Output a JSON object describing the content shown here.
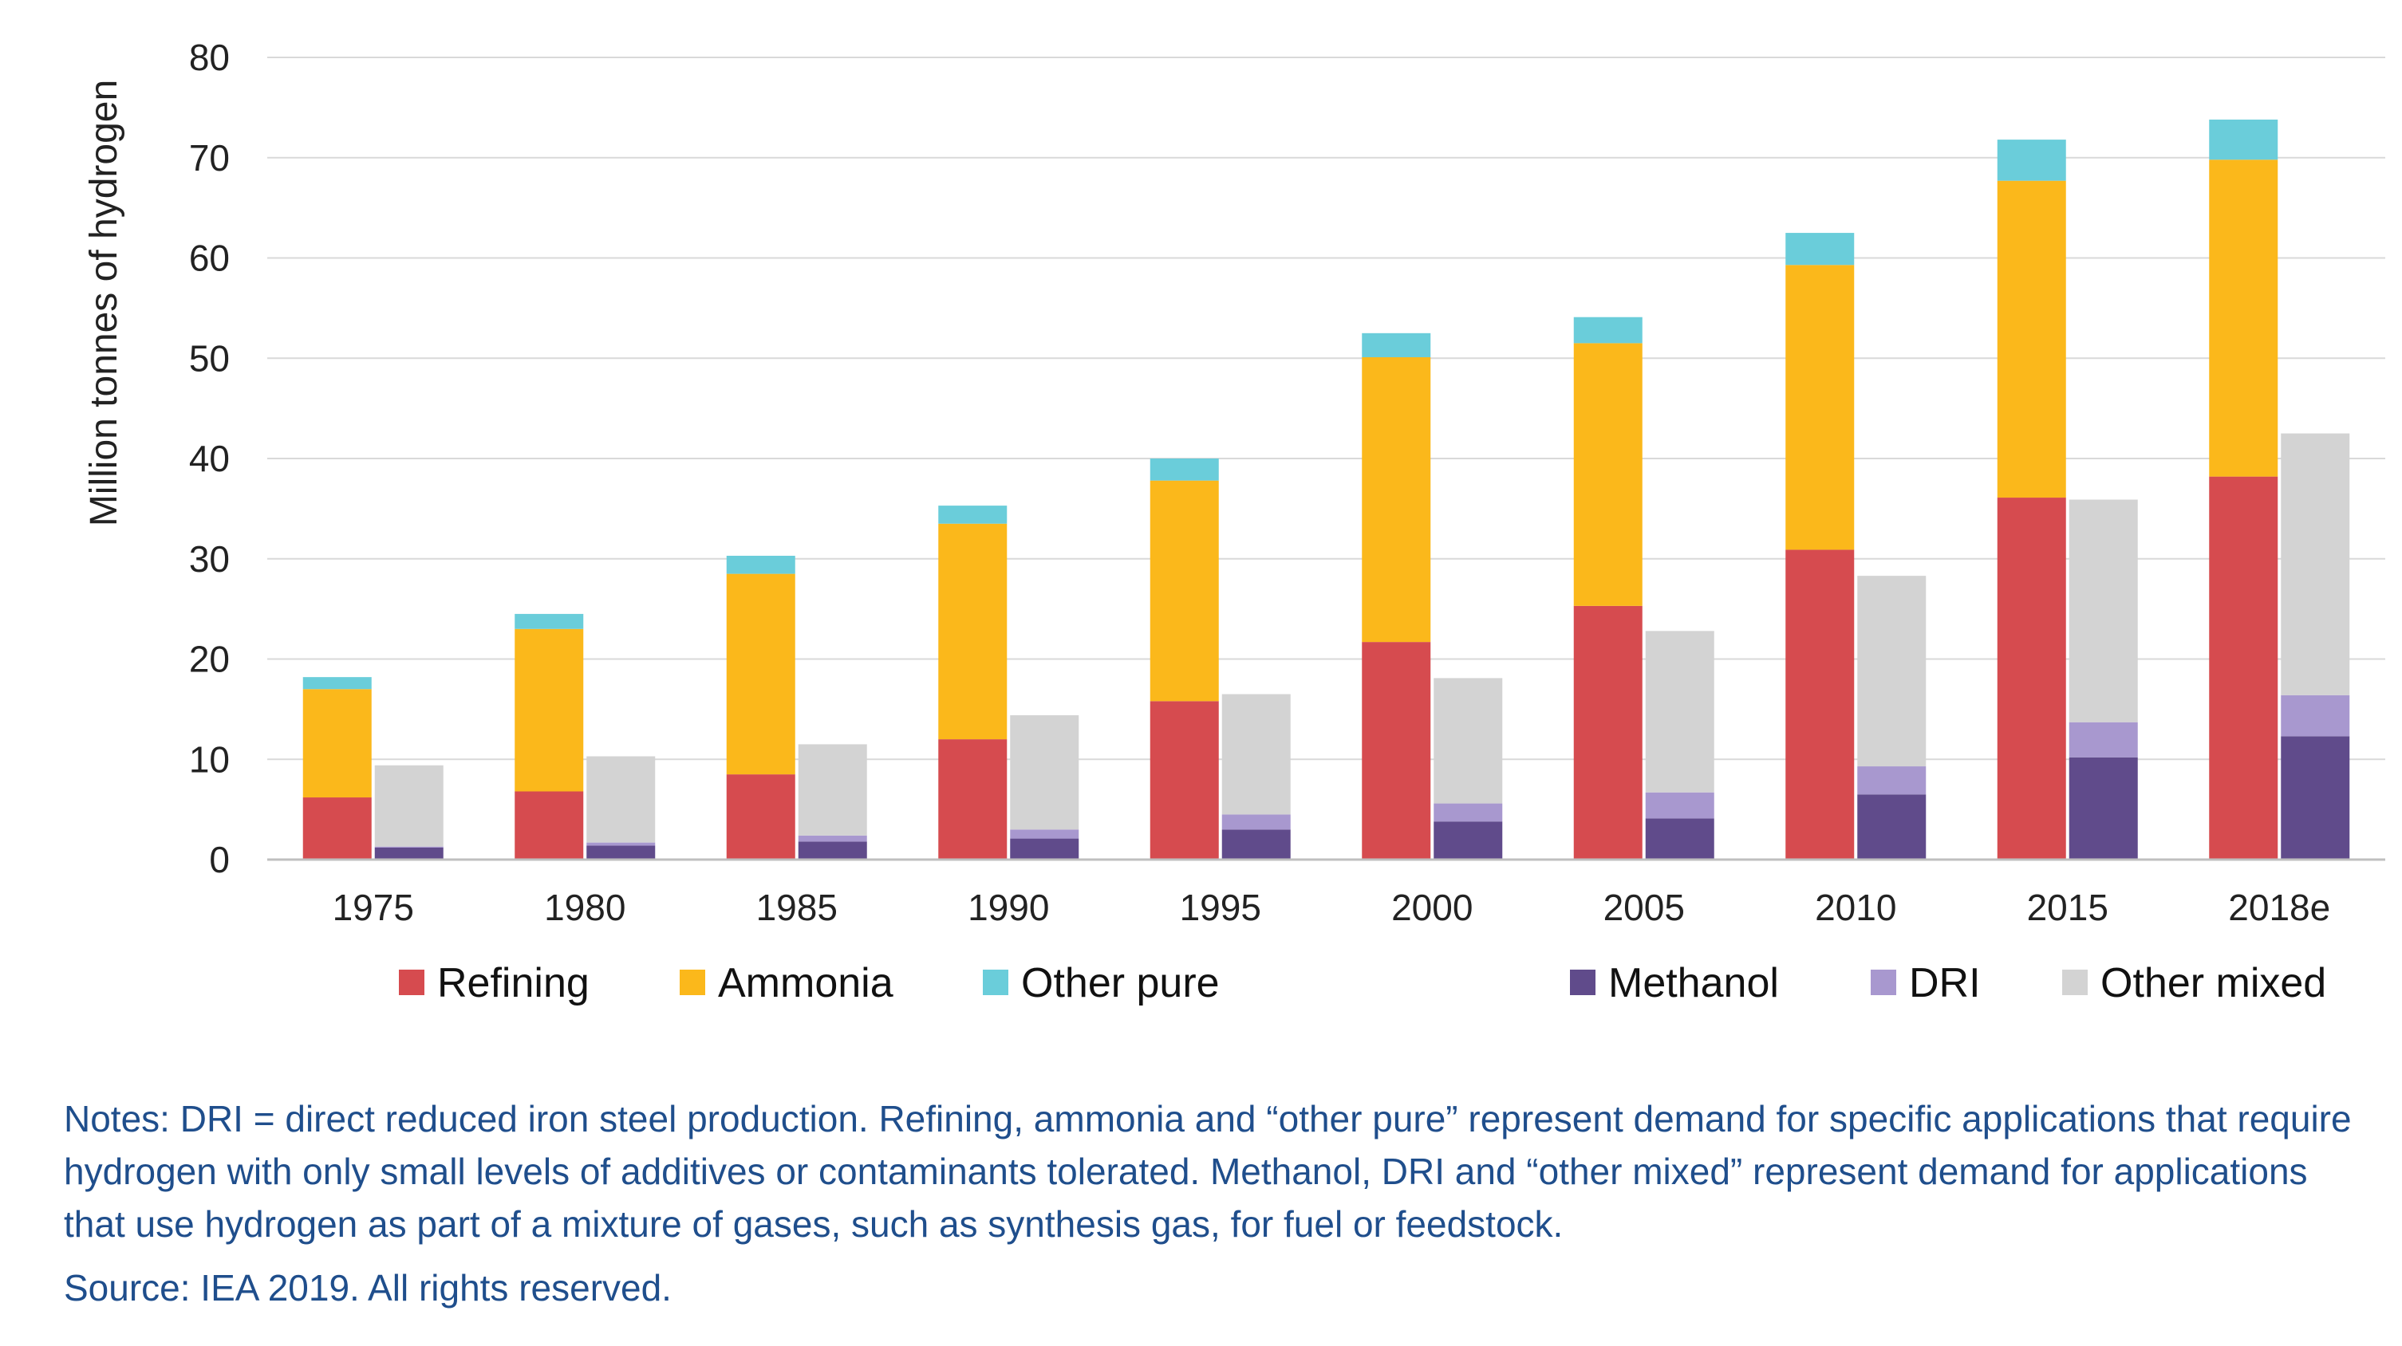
{
  "chart_data": {
    "type": "bar",
    "title": "",
    "xlabel": "",
    "ylabel": "Million tonnes of hydrogen",
    "ylim": [
      0,
      80
    ],
    "yticks": [
      0,
      10,
      20,
      30,
      40,
      50,
      60,
      70,
      80
    ],
    "categories": [
      "1975",
      "1980",
      "1985",
      "1990",
      "1995",
      "2000",
      "2005",
      "2010",
      "2015",
      "2018e"
    ],
    "stacks": [
      {
        "name": "pure",
        "series": [
          {
            "name": "Refining",
            "color": "#d64b4f",
            "values": [
              6.2,
              6.8,
              8.5,
              12.0,
              15.8,
              21.7,
              25.3,
              30.9,
              36.1,
              38.2
            ]
          },
          {
            "name": "Ammonia",
            "color": "#fbb81b",
            "values": [
              10.8,
              16.2,
              20.0,
              21.5,
              22.0,
              28.4,
              26.2,
              28.4,
              31.6,
              31.6
            ]
          },
          {
            "name": "Other pure",
            "color": "#6acdda",
            "values": [
              1.2,
              1.5,
              1.8,
              1.8,
              2.2,
              2.4,
              2.6,
              3.2,
              4.1,
              4.0
            ]
          }
        ]
      },
      {
        "name": "mixed",
        "series": [
          {
            "name": "Methanol",
            "color": "#604b8b",
            "values": [
              1.2,
              1.4,
              1.8,
              2.1,
              3.0,
              3.8,
              4.1,
              6.5,
              10.2,
              12.3
            ]
          },
          {
            "name": "DRI",
            "color": "#a898cf",
            "values": [
              0.1,
              0.3,
              0.6,
              0.9,
              1.5,
              1.8,
              2.6,
              2.8,
              3.5,
              4.1
            ]
          },
          {
            "name": "Other mixed",
            "color": "#d3d3d3",
            "values": [
              8.1,
              8.6,
              9.1,
              11.4,
              12.0,
              12.5,
              16.1,
              19.0,
              22.2,
              26.1
            ]
          }
        ]
      }
    ],
    "legend": [
      "Refining",
      "Ammonia",
      "Other pure",
      "Methanol",
      "DRI",
      "Other mixed"
    ],
    "legend_position": "bottom",
    "grid": true
  },
  "notes": "Notes: DRI = direct reduced iron steel production. Refining, ammonia and “other pure” represent demand for specific applications that require hydrogen with only small levels of additives or contaminants tolerated. Methanol, DRI and “other mixed” represent demand for applications that use hydrogen as part of a mixture of gases, such as synthesis gas, for fuel or feedstock.",
  "source": "Source: IEA 2019. All rights reserved."
}
